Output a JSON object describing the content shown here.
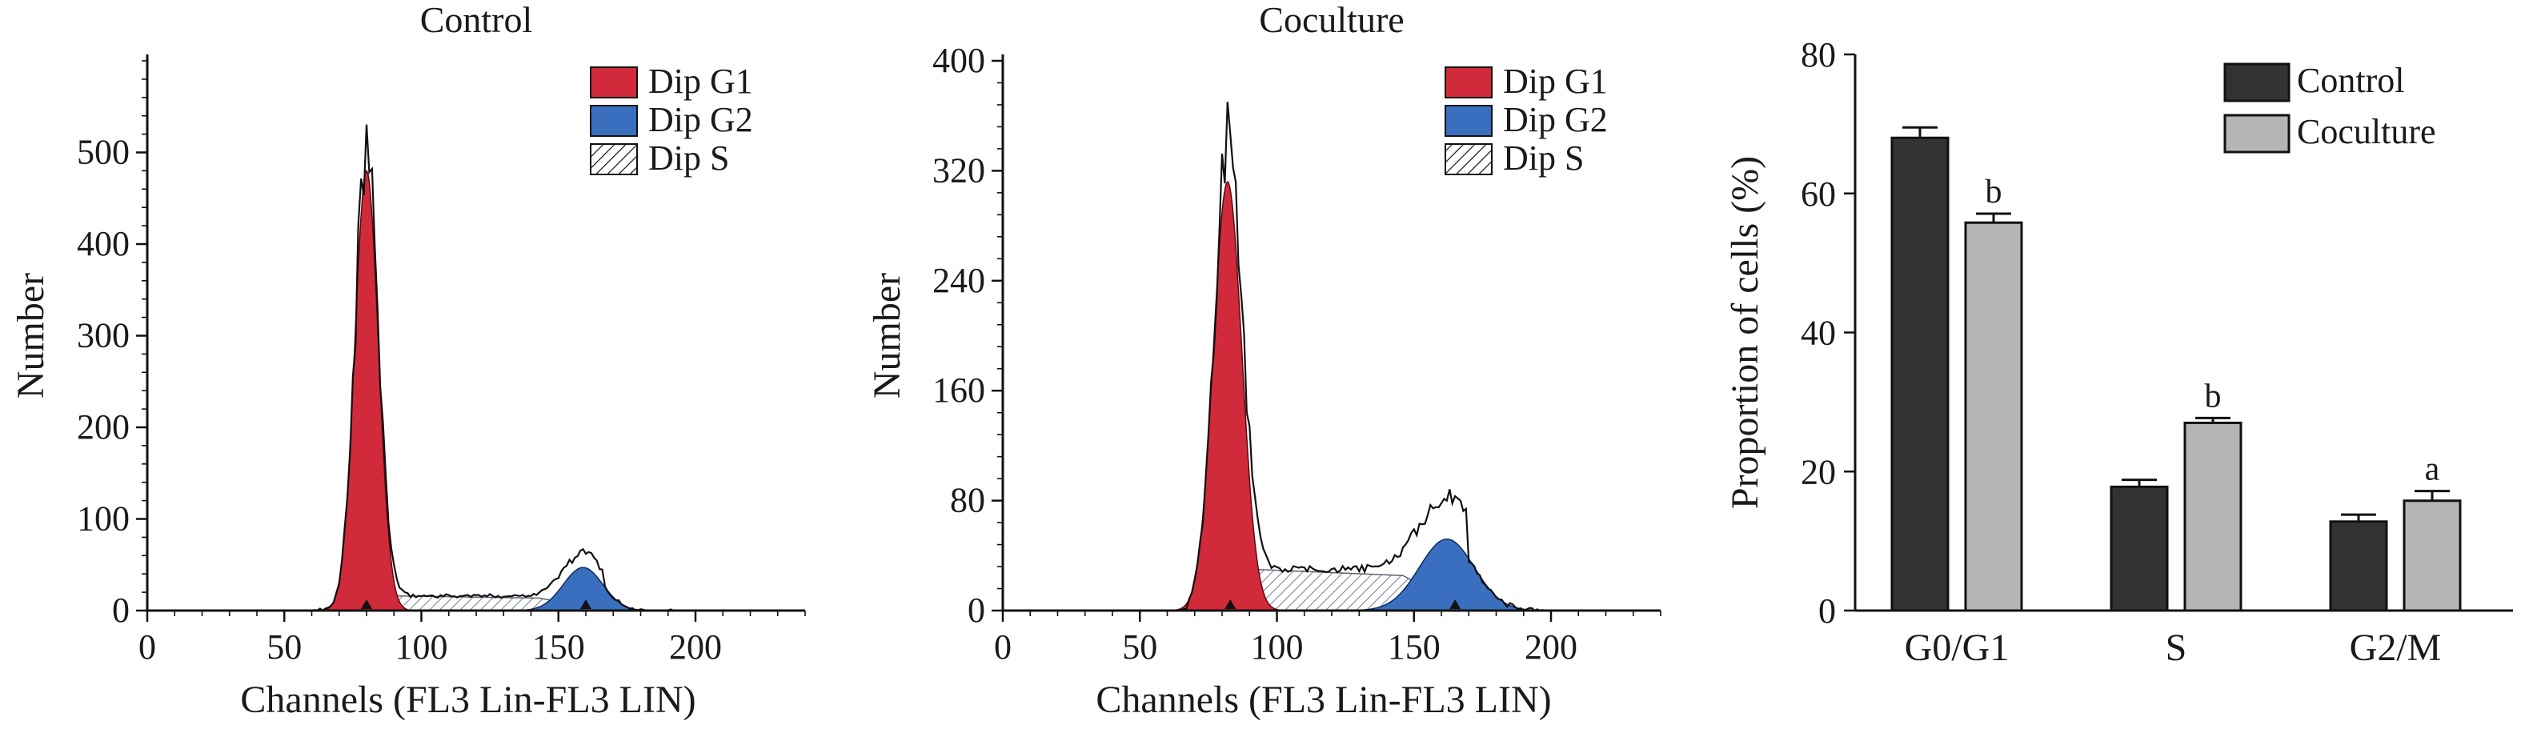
{
  "chart_data": [
    {
      "type": "area",
      "title": "Control",
      "xlabel": "Channels (FL3 Lin-FL3 LIN)",
      "ylabel": "Number",
      "xlim": [
        0,
        240
      ],
      "ylim": [
        0,
        600
      ],
      "x_ticks": [
        "0",
        "50",
        "100",
        "150",
        "200"
      ],
      "y_ticks": [
        "0",
        "100",
        "200",
        "300",
        "400",
        "500"
      ],
      "legend": [
        "Dip G1",
        "Dip G2",
        "Dip S"
      ],
      "legend_position": "top-right",
      "colors": {
        "g1": "#d12a3b",
        "g2": "#3a6fc0",
        "s": "#9aa4b0",
        "outline": "#111111"
      },
      "g1": {
        "peak_channel": 80,
        "peak_count": 480,
        "width": 4.3
      },
      "g2": {
        "peak_channel": 159,
        "peak_count": 47,
        "width": 7.2
      },
      "s_phase_level": 16,
      "histogram_peak": 525,
      "markers": [
        80,
        160
      ],
      "range": [
        58,
        195
      ]
    },
    {
      "type": "area",
      "title": "Coculture",
      "xlabel": "Channels (FL3 Lin-FL3 LIN)",
      "ylabel": "Number",
      "xlim": [
        0,
        240
      ],
      "ylim": [
        0,
        400
      ],
      "x_ticks": [
        "0",
        "50",
        "100",
        "150",
        "200"
      ],
      "y_ticks": [
        "0",
        "80",
        "160",
        "240",
        "320",
        "400"
      ],
      "legend": [
        "Dip G1",
        "Dip G2",
        "Dip S"
      ],
      "legend_position": "top-right",
      "colors": {
        "g1": "#d12a3b",
        "g2": "#3a6fc0",
        "s": "#9aa4b0",
        "outline": "#111111"
      },
      "g1": {
        "peak_channel": 82,
        "peak_count": 312,
        "width": 5.2
      },
      "g2": {
        "peak_channel": 162,
        "peak_count": 52,
        "width": 10
      },
      "s_phase_level": 30,
      "histogram_peak": 365,
      "markers": [
        83,
        165
      ],
      "range": [
        64,
        200
      ]
    },
    {
      "type": "bar",
      "categories": [
        "G0/G1",
        "S",
        "G2/M"
      ],
      "ylabel": "Proportion of cells (%)",
      "ylim": [
        0,
        80
      ],
      "y_ticks": [
        "0",
        "20",
        "40",
        "60",
        "80"
      ],
      "series": [
        {
          "name": "Control",
          "color": "#333333",
          "values": [
            68,
            17.8,
            12.8
          ],
          "errors": [
            1.5,
            1.0,
            1.0
          ],
          "labels": [
            "",
            "",
            ""
          ]
        },
        {
          "name": "Coculture",
          "color": "#b5b5b5",
          "values": [
            55.8,
            27,
            15.8
          ],
          "errors": [
            1.3,
            0.7,
            1.4
          ],
          "labels": [
            "b",
            "b",
            "a"
          ]
        }
      ],
      "legend_position": "top-right"
    }
  ]
}
